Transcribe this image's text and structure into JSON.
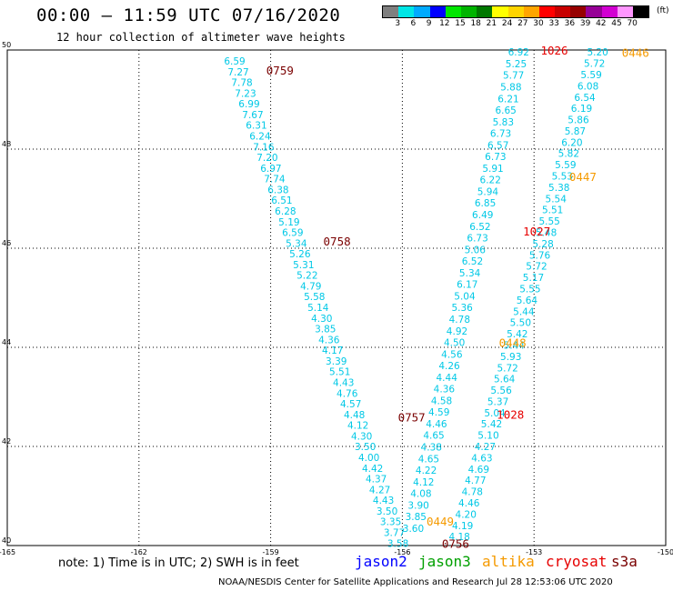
{
  "title": "00:00 – 11:59 UTC 07/16/2020",
  "subtitle": "12 hour collection of altimeter wave heights",
  "legend": {
    "labels": [
      "3",
      "6",
      "9",
      "12",
      "15",
      "18",
      "21",
      "24",
      "27",
      "30",
      "33",
      "36",
      "39",
      "42",
      "45",
      "70"
    ],
    "unit": "(ft)",
    "colors": [
      "#7f7f7f",
      "#00e6e6",
      "#00aaff",
      "#0000ff",
      "#00e600",
      "#00b400",
      "#007800",
      "#ffff00",
      "#ffd400",
      "#ffa500",
      "#ff0000",
      "#c80000",
      "#960000",
      "#960096",
      "#d200d2",
      "#ff96ff",
      "#000000"
    ]
  },
  "axes": {
    "x_labels": [
      "-165",
      "-162",
      "-159",
      "-156",
      "-153",
      "-150"
    ],
    "y_labels": [
      "50",
      "48",
      "46",
      "44",
      "42",
      "40"
    ],
    "lon_range": [
      -165,
      -150
    ],
    "lat_range": [
      40,
      50
    ]
  },
  "chart_data": {
    "type": "scatter",
    "x_label_unit": "longitude",
    "y_label_unit": "latitude",
    "swh_color": "#00c8e6",
    "tracks": [
      {
        "values": [
          "6.59",
          "7.27",
          "7.78",
          "7.23",
          "6.99",
          "7.67",
          "6.31",
          "6.24",
          "7.16",
          "7.20",
          "6.97",
          "7.74",
          "6.38",
          "6.51",
          "6.28",
          "5.19",
          "6.59",
          "5.34",
          "5.26",
          "5.31",
          "5.22",
          "4.79",
          "5.58",
          "5.14",
          "4.30",
          "3.85",
          "4.36",
          "4.17",
          "3.39",
          "5.51",
          "4.43",
          "4.76",
          "4.57",
          "4.48",
          "4.12",
          "4.30",
          "3.50",
          "4.00",
          "4.42",
          "4.37",
          "4.27",
          "4.43",
          "3.50",
          "3.35",
          "3.77",
          "3.58"
        ],
        "lon_start": -159.82,
        "lon_end": -156.1,
        "lat_start": 49.78,
        "lat_end": 40.05
      },
      {
        "values": [
          "5.20",
          "5.72",
          "5.59",
          "6.08",
          "6.54",
          "6.19",
          "5.86",
          "5.87",
          "6.20",
          "5.82",
          "5.59",
          "5.53",
          "5.38",
          "5.54",
          "5.51",
          "5.55",
          "5.48",
          "5.28",
          "5.76",
          "5.72",
          "5.17",
          "5.55",
          "5.64",
          "5.44",
          "5.50",
          "5.42",
          "5.44",
          "5.93",
          "5.72",
          "5.64",
          "5.56",
          "5.37",
          "5.04",
          "5.42",
          "5.10",
          "4.27",
          "4.63",
          "4.69",
          "4.77",
          "4.78",
          "4.46",
          "4.20",
          "4.19",
          "4.18"
        ],
        "lon_start": -151.55,
        "lon_end": -154.7,
        "lat_start": 49.96,
        "lat_end": 40.18
      },
      {
        "values": [
          "6.92",
          "5.25",
          "5.77",
          "5.88",
          "6.21",
          "6.65",
          "5.83",
          "6.73",
          "6.57",
          "6.73",
          "5.91",
          "6.22",
          "5.94",
          "6.85",
          "6.49",
          "6.52",
          "6.73",
          "5.06",
          "6.52",
          "5.34",
          "6.17",
          "5.04",
          "5.36",
          "4.78",
          "4.92",
          "4.50",
          "4.56",
          "4.26",
          "4.44",
          "4.36",
          "4.58",
          "4.59",
          "4.46",
          "4.65",
          "4.38",
          "4.65",
          "4.22",
          "4.12",
          "4.08",
          "3.90",
          "3.85",
          "3.60"
        ],
        "lon_start": -153.35,
        "lon_end": -155.75,
        "lat_start": 49.96,
        "lat_end": 40.35
      }
    ],
    "time_labels": [
      {
        "text": "0759",
        "lon": -159.1,
        "lat": 49.6,
        "color": "#7a0000"
      },
      {
        "text": "0758",
        "lon": -157.8,
        "lat": 46.15,
        "color": "#7a0000"
      },
      {
        "text": "0757",
        "lon": -156.1,
        "lat": 42.6,
        "color": "#7a0000"
      },
      {
        "text": "0756",
        "lon": -155.1,
        "lat": 40.05,
        "color": "#7a0000"
      },
      {
        "text": "1026",
        "lon": -152.85,
        "lat": 50.0,
        "color": "#e60000"
      },
      {
        "text": "1027",
        "lon": -153.25,
        "lat": 46.35,
        "color": "#e60000"
      },
      {
        "text": "1028",
        "lon": -153.85,
        "lat": 42.65,
        "color": "#e60000"
      },
      {
        "text": "0446",
        "lon": -151.0,
        "lat": 49.95,
        "color": "#f59a00"
      },
      {
        "text": "0447",
        "lon": -152.2,
        "lat": 47.45,
        "color": "#f59a00"
      },
      {
        "text": "0448",
        "lon": -153.8,
        "lat": 44.1,
        "color": "#f59a00"
      },
      {
        "text": "0449",
        "lon": -155.45,
        "lat": 40.5,
        "color": "#f59a00"
      }
    ]
  },
  "footer": {
    "note": "note: 1) Time is in UTC; 2) SWH is in feet",
    "satellites": [
      {
        "name": "jason2",
        "color": "#0000ff"
      },
      {
        "name": "jason3",
        "color": "#00a000"
      },
      {
        "name": "altika",
        "color": "#f59a00"
      },
      {
        "name": "cryosat",
        "color": "#e60000"
      },
      {
        "name": "s3a",
        "color": "#7a0000"
      }
    ],
    "credit": "NOAA/NESDIS Center for Satellite Applications and Research   Jul 28 12:53:06 UTC 2020"
  }
}
